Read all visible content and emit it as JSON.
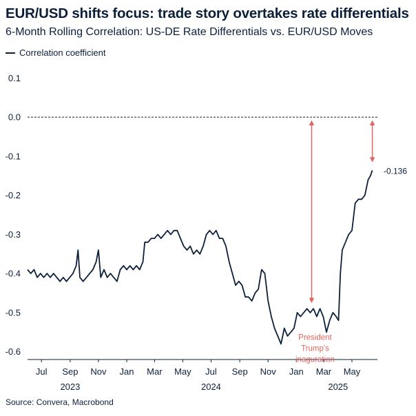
{
  "chart_data": {
    "type": "line",
    "title": "EUR/USD shifts focus: trade story overtakes rate differentials",
    "subtitle": "6-Month Rolling Correlation: US-DE Rate Differentials vs. EUR/USD Moves",
    "source": "Source: Convera, Macrobond",
    "ylim": [
      -0.62,
      0.12
    ],
    "y_ticks": [
      0.1,
      0.0,
      -0.1,
      -0.2,
      -0.3,
      -0.4,
      -0.5,
      -0.6
    ],
    "y_tick_labels": [
      "0.1",
      "0.0",
      "-0.1",
      "-0.2",
      "-0.3",
      "-0.4",
      "-0.5",
      "-0.6"
    ],
    "x_range": [
      "2023-06-01",
      "2025-06-25"
    ],
    "x_month_ticks": [
      {
        "date": "2023-07-01",
        "label": "Jul"
      },
      {
        "date": "2023-09-01",
        "label": "Sep"
      },
      {
        "date": "2023-11-01",
        "label": "Nov"
      },
      {
        "date": "2024-01-01",
        "label": "Jan"
      },
      {
        "date": "2024-03-01",
        "label": "Mar"
      },
      {
        "date": "2024-05-01",
        "label": "May"
      },
      {
        "date": "2024-07-01",
        "label": "Jul"
      },
      {
        "date": "2024-09-01",
        "label": "Sep"
      },
      {
        "date": "2024-11-01",
        "label": "Nov"
      },
      {
        "date": "2025-01-01",
        "label": "Jan"
      },
      {
        "date": "2025-03-01",
        "label": "Mar"
      },
      {
        "date": "2025-05-01",
        "label": "May"
      }
    ],
    "x_year_labels": [
      {
        "date": "2023-09-01",
        "label": "2023"
      },
      {
        "date": "2024-07-01",
        "label": "2024"
      },
      {
        "date": "2025-04-01",
        "label": "2025"
      }
    ],
    "zero_line": {
      "y": 0.0,
      "style": "dashed"
    },
    "series": [
      {
        "name": "Correlation coefficient",
        "color": "#0b1f3a",
        "points": [
          {
            "x": "2023-06-01",
            "y": -0.39
          },
          {
            "x": "2023-06-08",
            "y": -0.4
          },
          {
            "x": "2023-06-15",
            "y": -0.39
          },
          {
            "x": "2023-06-22",
            "y": -0.41
          },
          {
            "x": "2023-06-29",
            "y": -0.4
          },
          {
            "x": "2023-07-06",
            "y": -0.41
          },
          {
            "x": "2023-07-13",
            "y": -0.4
          },
          {
            "x": "2023-07-20",
            "y": -0.41
          },
          {
            "x": "2023-07-27",
            "y": -0.4
          },
          {
            "x": "2023-08-03",
            "y": -0.41
          },
          {
            "x": "2023-08-10",
            "y": -0.42
          },
          {
            "x": "2023-08-17",
            "y": -0.41
          },
          {
            "x": "2023-08-24",
            "y": -0.42
          },
          {
            "x": "2023-08-31",
            "y": -0.41
          },
          {
            "x": "2023-09-07",
            "y": -0.4
          },
          {
            "x": "2023-09-14",
            "y": -0.38
          },
          {
            "x": "2023-09-18",
            "y": -0.34
          },
          {
            "x": "2023-09-22",
            "y": -0.41
          },
          {
            "x": "2023-09-29",
            "y": -0.42
          },
          {
            "x": "2023-10-06",
            "y": -0.41
          },
          {
            "x": "2023-10-13",
            "y": -0.4
          },
          {
            "x": "2023-10-20",
            "y": -0.39
          },
          {
            "x": "2023-10-27",
            "y": -0.37
          },
          {
            "x": "2023-11-01",
            "y": -0.34
          },
          {
            "x": "2023-11-06",
            "y": -0.41
          },
          {
            "x": "2023-11-13",
            "y": -0.39
          },
          {
            "x": "2023-11-20",
            "y": -0.41
          },
          {
            "x": "2023-11-27",
            "y": -0.4
          },
          {
            "x": "2023-12-04",
            "y": -0.41
          },
          {
            "x": "2023-12-11",
            "y": -0.42
          },
          {
            "x": "2023-12-18",
            "y": -0.39
          },
          {
            "x": "2023-12-25",
            "y": -0.38
          },
          {
            "x": "2024-01-01",
            "y": -0.39
          },
          {
            "x": "2024-01-08",
            "y": -0.38
          },
          {
            "x": "2024-01-15",
            "y": -0.39
          },
          {
            "x": "2024-01-22",
            "y": -0.38
          },
          {
            "x": "2024-01-29",
            "y": -0.39
          },
          {
            "x": "2024-02-05",
            "y": -0.37
          },
          {
            "x": "2024-02-09",
            "y": -0.32
          },
          {
            "x": "2024-02-16",
            "y": -0.32
          },
          {
            "x": "2024-02-23",
            "y": -0.31
          },
          {
            "x": "2024-03-01",
            "y": -0.31
          },
          {
            "x": "2024-03-08",
            "y": -0.3
          },
          {
            "x": "2024-03-15",
            "y": -0.31
          },
          {
            "x": "2024-03-22",
            "y": -0.3
          },
          {
            "x": "2024-03-29",
            "y": -0.29
          },
          {
            "x": "2024-04-05",
            "y": -0.3
          },
          {
            "x": "2024-04-12",
            "y": -0.29
          },
          {
            "x": "2024-04-19",
            "y": -0.29
          },
          {
            "x": "2024-04-26",
            "y": -0.31
          },
          {
            "x": "2024-05-03",
            "y": -0.33
          },
          {
            "x": "2024-05-10",
            "y": -0.34
          },
          {
            "x": "2024-05-17",
            "y": -0.33
          },
          {
            "x": "2024-05-24",
            "y": -0.35
          },
          {
            "x": "2024-05-31",
            "y": -0.34
          },
          {
            "x": "2024-06-07",
            "y": -0.35
          },
          {
            "x": "2024-06-14",
            "y": -0.33
          },
          {
            "x": "2024-06-21",
            "y": -0.3
          },
          {
            "x": "2024-06-28",
            "y": -0.29
          },
          {
            "x": "2024-07-05",
            "y": -0.3
          },
          {
            "x": "2024-07-12",
            "y": -0.29
          },
          {
            "x": "2024-07-19",
            "y": -0.31
          },
          {
            "x": "2024-07-26",
            "y": -0.31
          },
          {
            "x": "2024-08-02",
            "y": -0.33
          },
          {
            "x": "2024-08-09",
            "y": -0.37
          },
          {
            "x": "2024-08-16",
            "y": -0.4
          },
          {
            "x": "2024-08-23",
            "y": -0.43
          },
          {
            "x": "2024-08-30",
            "y": -0.42
          },
          {
            "x": "2024-09-06",
            "y": -0.43
          },
          {
            "x": "2024-09-13",
            "y": -0.46
          },
          {
            "x": "2024-09-20",
            "y": -0.46
          },
          {
            "x": "2024-09-27",
            "y": -0.47
          },
          {
            "x": "2024-10-04",
            "y": -0.45
          },
          {
            "x": "2024-10-11",
            "y": -0.44
          },
          {
            "x": "2024-10-18",
            "y": -0.39
          },
          {
            "x": "2024-10-25",
            "y": -0.4
          },
          {
            "x": "2024-11-01",
            "y": -0.47
          },
          {
            "x": "2024-11-08",
            "y": -0.51
          },
          {
            "x": "2024-11-15",
            "y": -0.54
          },
          {
            "x": "2024-11-22",
            "y": -0.56
          },
          {
            "x": "2024-11-29",
            "y": -0.58
          },
          {
            "x": "2024-12-06",
            "y": -0.54
          },
          {
            "x": "2024-12-13",
            "y": -0.56
          },
          {
            "x": "2024-12-20",
            "y": -0.55
          },
          {
            "x": "2024-12-27",
            "y": -0.54
          },
          {
            "x": "2025-01-03",
            "y": -0.5
          },
          {
            "x": "2025-01-10",
            "y": -0.51
          },
          {
            "x": "2025-01-17",
            "y": -0.5
          },
          {
            "x": "2025-01-24",
            "y": -0.49
          },
          {
            "x": "2025-01-31",
            "y": -0.5
          },
          {
            "x": "2025-02-07",
            "y": -0.49
          },
          {
            "x": "2025-02-14",
            "y": -0.51
          },
          {
            "x": "2025-02-21",
            "y": -0.49
          },
          {
            "x": "2025-02-28",
            "y": -0.51
          },
          {
            "x": "2025-03-07",
            "y": -0.55
          },
          {
            "x": "2025-03-14",
            "y": -0.52
          },
          {
            "x": "2025-03-21",
            "y": -0.5
          },
          {
            "x": "2025-03-28",
            "y": -0.51
          },
          {
            "x": "2025-04-02",
            "y": -0.52
          },
          {
            "x": "2025-04-06",
            "y": -0.4
          },
          {
            "x": "2025-04-10",
            "y": -0.34
          },
          {
            "x": "2025-04-17",
            "y": -0.32
          },
          {
            "x": "2025-04-24",
            "y": -0.3
          },
          {
            "x": "2025-05-01",
            "y": -0.29
          },
          {
            "x": "2025-05-08",
            "y": -0.22
          },
          {
            "x": "2025-05-15",
            "y": -0.21
          },
          {
            "x": "2025-05-22",
            "y": -0.21
          },
          {
            "x": "2025-05-29",
            "y": -0.2
          },
          {
            "x": "2025-06-05",
            "y": -0.16
          },
          {
            "x": "2025-06-10",
            "y": -0.15
          },
          {
            "x": "2025-06-14",
            "y": -0.136
          }
        ]
      }
    ],
    "last_value_label": "-0.136",
    "annotations": {
      "event_label_lines": [
        "President",
        "Trump's",
        "inaguration"
      ],
      "color": "#e0655e",
      "arrows": [
        {
          "date": "2025-02-03",
          "from": 0.0,
          "to": -0.48
        },
        {
          "date": "2025-06-14",
          "from": 0.0,
          "to": -0.12
        }
      ]
    },
    "grid": false,
    "legend_position": "top-left"
  }
}
